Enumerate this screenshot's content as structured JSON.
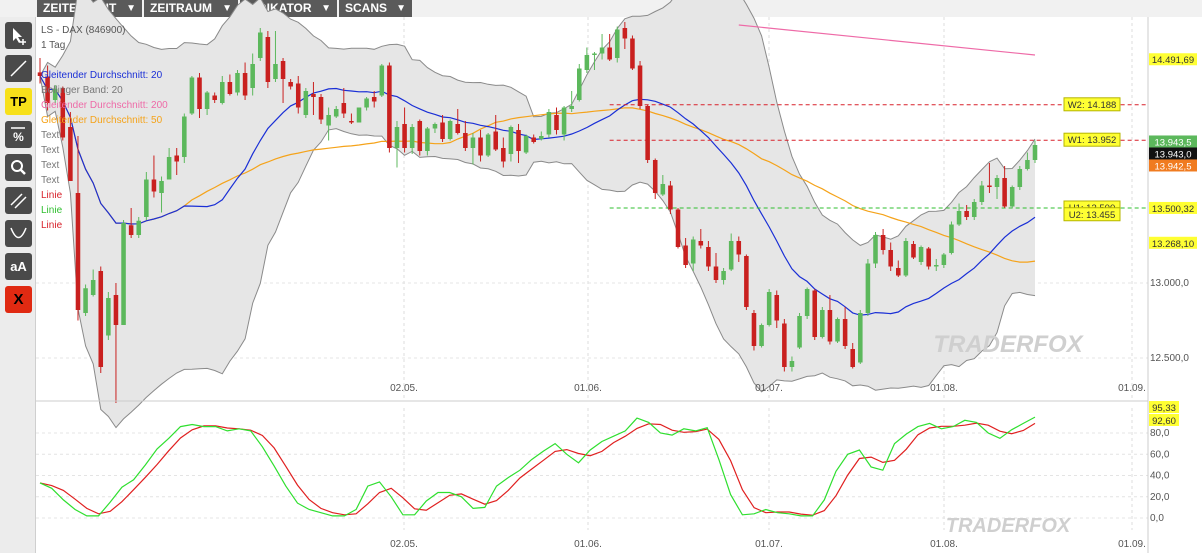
{
  "menu": {
    "items": [
      {
        "label": "ZEITEINHEIT",
        "arrow": "▼"
      },
      {
        "label": "ZEITRAUM",
        "arrow": "▼"
      },
      {
        "label": "INDIKATOR",
        "arrow": "▼"
      },
      {
        "label": "SCANS",
        "arrow": "▼"
      }
    ]
  },
  "toolbar": {
    "tools": [
      {
        "name": "cursor-tool",
        "label": ""
      },
      {
        "name": "line-tool",
        "label": ""
      },
      {
        "name": "tp-tool",
        "label": "TP"
      },
      {
        "name": "percent-tool",
        "label": "%"
      },
      {
        "name": "zoom-tool",
        "label": ""
      },
      {
        "name": "channel-tool",
        "label": ""
      },
      {
        "name": "curve-tool",
        "label": ""
      },
      {
        "name": "text-size-tool",
        "label": "aA"
      },
      {
        "name": "delete-tool",
        "label": "X"
      }
    ]
  },
  "chart_meta": {
    "instrument": "LS - DAX (846900)",
    "timeframe": "1 Tag",
    "legend": [
      {
        "label": "Gleitender Durchschnitt: 20",
        "color": "#1a2fd6"
      },
      {
        "label": "Bollinger Band: 20",
        "color": "#777777"
      },
      {
        "label": "Gleitender Durchschnitt: 200",
        "color": "#ee6aa7"
      },
      {
        "label": "Gleitender Durchschnitt: 50",
        "color": "#f5a31a"
      },
      {
        "label": "Text",
        "color": "#777777"
      },
      {
        "label": "Text",
        "color": "#777777"
      },
      {
        "label": "Text",
        "color": "#777777"
      },
      {
        "label": "Text",
        "color": "#777777"
      },
      {
        "label": "Linie",
        "color": "#d8202a"
      },
      {
        "label": "Linie",
        "color": "#2fbf2f"
      },
      {
        "label": "Linie",
        "color": "#d8202a"
      }
    ],
    "annotations": [
      {
        "label": "W2: 14.188",
        "value": 14188
      },
      {
        "label": "W1: 13.952",
        "value": 13952
      },
      {
        "label": "U1: 13.500",
        "value": 13500
      },
      {
        "label": "U2: 13.455",
        "value": 13455
      }
    ],
    "price_tags": [
      {
        "label": "14.491,69",
        "value": 14491.69,
        "bg": "#ffff33",
        "fg": "#333333"
      },
      {
        "label": "13.943,5",
        "value": 13943.5,
        "bg": "#5cb85c",
        "fg": "#ffffff"
      },
      {
        "label": "13.943,0",
        "value": 13943.0,
        "bg": "#111111",
        "fg": "#ffffff"
      },
      {
        "label": "13.942,5",
        "value": 13942.5,
        "bg": "#f07b20",
        "fg": "#ffffff"
      },
      {
        "label": "13.500,32",
        "value": 13500.32,
        "bg": "#ffff33",
        "fg": "#333333"
      },
      {
        "label": "13.268,10",
        "value": 13268.1,
        "bg": "#ffff33",
        "fg": "#333333"
      }
    ],
    "stoch_tags": [
      {
        "label": "95,33",
        "value": 95.33,
        "bg": "#ffff33"
      },
      {
        "label": "92,60",
        "value": 92.6,
        "bg": "#ffff33"
      }
    ],
    "watermark": "TRADERFOX",
    "colors": {
      "up": "#5cb85c",
      "down": "#c9201f",
      "band_fill": "#e6e6e6",
      "ma20": "#1a2fd6",
      "ma50": "#f5a31a",
      "ma200": "#ee6aa7",
      "stoch_k": "#2fdf2f",
      "stoch_d": "#e02020"
    }
  },
  "chart_data": [
    {
      "type": "candlestick",
      "title": "LS - DAX (846900)",
      "x_ticks": [
        "02.05.",
        "01.06.",
        "01.07.",
        "01.08.",
        "01.09."
      ],
      "y_ticks": [
        "12.500,0",
        "13.000,0"
      ],
      "ylim": [
        12300,
        14800
      ],
      "horizontal_lines": [
        {
          "value": 14188,
          "color": "#d8202a",
          "style": "dashed"
        },
        {
          "value": 13952,
          "color": "#d8202a",
          "style": "dashed"
        },
        {
          "value": 13500,
          "color": "#2fbf2f",
          "style": "dashed"
        }
      ],
      "series": [
        {
          "type": "moving_average"
        },
        {
          "type": "moving_average"
        },
        {
          "type": "moving_average"
        },
        {
          "type": "bollinger_band"
        }
      ],
      "candles": [
        [
          14404,
          14500,
          14330,
          14380
        ],
        [
          14377,
          14450,
          14150,
          14200
        ],
        [
          14220,
          14320,
          14200,
          14295
        ],
        [
          14300,
          14310,
          13950,
          13970
        ],
        [
          14040,
          14140,
          13700,
          13680
        ],
        [
          13600,
          13980,
          12750,
          12820
        ],
        [
          12800,
          12990,
          12780,
          12965
        ],
        [
          12920,
          13090,
          12910,
          13020
        ],
        [
          13080,
          13110,
          12400,
          12440
        ],
        [
          12650,
          12940,
          12620,
          12900
        ],
        [
          12920,
          13000,
          12200,
          12720
        ],
        [
          12720,
          13420,
          12720,
          13400
        ],
        [
          13385,
          13500,
          13300,
          13320
        ],
        [
          13320,
          13440,
          13300,
          13415
        ],
        [
          13440,
          13740,
          13420,
          13690
        ],
        [
          13690,
          13850,
          13570,
          13610
        ],
        [
          13600,
          13710,
          13470,
          13680
        ],
        [
          13690,
          13900,
          13690,
          13840
        ],
        [
          13850,
          13900,
          13720,
          13810
        ],
        [
          13840,
          14130,
          13800,
          14110
        ],
        [
          14130,
          14380,
          14120,
          14370
        ],
        [
          14370,
          14400,
          14100,
          14160
        ],
        [
          14160,
          14280,
          14120,
          14270
        ],
        [
          14250,
          14270,
          14200,
          14220
        ],
        [
          14200,
          14380,
          14190,
          14340
        ],
        [
          14340,
          14390,
          14250,
          14260
        ],
        [
          14270,
          14420,
          14250,
          14400
        ],
        [
          14400,
          14470,
          14220,
          14250
        ],
        [
          14300,
          14530,
          14250,
          14460
        ],
        [
          14500,
          14700,
          14480,
          14670
        ],
        [
          14640,
          14680,
          14300,
          14340
        ],
        [
          14360,
          14680,
          14340,
          14460
        ],
        [
          14480,
          14500,
          14200,
          14360
        ],
        [
          14340,
          14360,
          14290,
          14310
        ],
        [
          14330,
          14380,
          14130,
          14170
        ],
        [
          14120,
          14300,
          14100,
          14280
        ],
        [
          14260,
          14340,
          14120,
          14240
        ],
        [
          14240,
          14260,
          14060,
          14090
        ],
        [
          14050,
          14170,
          13950,
          14120
        ],
        [
          14110,
          14180,
          14100,
          14160
        ],
        [
          14200,
          14300,
          14100,
          14130
        ],
        [
          14080,
          14130,
          14060,
          14070
        ],
        [
          14070,
          14170,
          14070,
          14170
        ],
        [
          14170,
          14240,
          14150,
          14230
        ],
        [
          14240,
          14280,
          14170,
          14210
        ],
        [
          14250,
          14460,
          14240,
          14450
        ],
        [
          14450,
          14470,
          13870,
          13900
        ],
        [
          13900,
          14080,
          13770,
          14040
        ],
        [
          14060,
          14170,
          13870,
          13900
        ],
        [
          13900,
          14060,
          13860,
          14040
        ],
        [
          14080,
          14090,
          13850,
          13880
        ],
        [
          13880,
          14040,
          13850,
          14030
        ],
        [
          14030,
          14070,
          14000,
          14060
        ],
        [
          14070,
          14120,
          13940,
          13960
        ],
        [
          13960,
          14090,
          13950,
          14080
        ],
        [
          14060,
          14160,
          13990,
          14000
        ],
        [
          14000,
          14080,
          13880,
          13900
        ],
        [
          13900,
          14000,
          13790,
          13970
        ],
        [
          13970,
          14020,
          13810,
          13850
        ],
        [
          13850,
          14000,
          13840,
          13990
        ],
        [
          14010,
          14120,
          13880,
          13890
        ],
        [
          13900,
          13970,
          13770,
          13810
        ],
        [
          13860,
          14050,
          13810,
          14040
        ],
        [
          14020,
          14060,
          13800,
          13880
        ],
        [
          13870,
          13990,
          13860,
          13980
        ],
        [
          13970,
          13990,
          13930,
          13940
        ],
        [
          13960,
          14010,
          13950,
          13980
        ],
        [
          13990,
          14160,
          13970,
          14140
        ],
        [
          14120,
          14170,
          13990,
          14020
        ],
        [
          13990,
          14180,
          13950,
          14170
        ],
        [
          14160,
          14280,
          14140,
          14180
        ],
        [
          14220,
          14460,
          14210,
          14430
        ],
        [
          14420,
          14570,
          14400,
          14520
        ],
        [
          14520,
          14540,
          14420,
          14530
        ],
        [
          14530,
          14660,
          14490,
          14570
        ],
        [
          14570,
          14660,
          14480,
          14490
        ],
        [
          14500,
          14710,
          14470,
          14690
        ],
        [
          14700,
          14740,
          14560,
          14630
        ],
        [
          14630,
          14650,
          14420,
          14430
        ],
        [
          14450,
          14480,
          14160,
          14180
        ],
        [
          14180,
          14190,
          13800,
          13820
        ],
        [
          13820,
          13830,
          13560,
          13600
        ],
        [
          13590,
          13720,
          13580,
          13660
        ],
        [
          13650,
          13680,
          13460,
          13490
        ],
        [
          13490,
          13500,
          13230,
          13240
        ],
        [
          13250,
          13300,
          13100,
          13120
        ],
        [
          13130,
          13310,
          13080,
          13290
        ],
        [
          13280,
          13360,
          13230,
          13250
        ],
        [
          13240,
          13280,
          13080,
          13110
        ],
        [
          13110,
          13200,
          13000,
          13020
        ],
        [
          13020,
          13100,
          12990,
          13080
        ],
        [
          13090,
          13330,
          13080,
          13280
        ],
        [
          13280,
          13310,
          13140,
          13190
        ],
        [
          13180,
          13190,
          12820,
          12840
        ],
        [
          12800,
          12820,
          12550,
          12580
        ],
        [
          12580,
          12730,
          12570,
          12720
        ],
        [
          12720,
          12960,
          12710,
          12940
        ],
        [
          12920,
          12950,
          12700,
          12750
        ],
        [
          12730,
          12760,
          12410,
          12440
        ],
        [
          12440,
          12510,
          12410,
          12480
        ],
        [
          12570,
          12800,
          12560,
          12780
        ],
        [
          12780,
          12970,
          12760,
          12960
        ],
        [
          12950,
          12960,
          12620,
          12640
        ],
        [
          12640,
          12840,
          12630,
          12820
        ],
        [
          12820,
          12920,
          12590,
          12610
        ],
        [
          12610,
          12770,
          12600,
          12760
        ],
        [
          12760,
          12840,
          12560,
          12580
        ],
        [
          12560,
          12600,
          12430,
          12440
        ],
        [
          12470,
          12820,
          12460,
          12800
        ],
        [
          12800,
          13160,
          12780,
          13130
        ],
        [
          13130,
          13340,
          13100,
          13320
        ],
        [
          13320,
          13360,
          13190,
          13220
        ],
        [
          13220,
          13270,
          13080,
          13110
        ],
        [
          13100,
          13150,
          13040,
          13050
        ],
        [
          13050,
          13300,
          13040,
          13280
        ],
        [
          13260,
          13280,
          13160,
          13170
        ],
        [
          13140,
          13250,
          13120,
          13240
        ],
        [
          13230,
          13240,
          13090,
          13110
        ],
        [
          13110,
          13160,
          13080,
          13120
        ],
        [
          13120,
          13200,
          13100,
          13190
        ],
        [
          13200,
          13410,
          13190,
          13390
        ],
        [
          13390,
          13530,
          13380,
          13480
        ],
        [
          13480,
          13520,
          13420,
          13440
        ],
        [
          13440,
          13560,
          13420,
          13540
        ],
        [
          13540,
          13680,
          13520,
          13650
        ],
        [
          13650,
          13800,
          13600,
          13640
        ],
        [
          13640,
          13720,
          13560,
          13700
        ],
        [
          13700,
          13780,
          13500,
          13510
        ],
        [
          13510,
          13650,
          13500,
          13640
        ],
        [
          13640,
          13780,
          13620,
          13760
        ],
        [
          13760,
          13870,
          13750,
          13820
        ],
        [
          13820,
          13950,
          13800,
          13920
        ]
      ]
    },
    {
      "type": "line",
      "title": "",
      "x_ticks": [
        "02.05.",
        "01.06.",
        "01.07.",
        "01.08.",
        "01.09."
      ],
      "y_ticks": [
        "0,0",
        "20,0",
        "40,0",
        "60,0",
        "80,0"
      ],
      "ylim": [
        -8,
        100
      ],
      "series": [
        {
          "values": [
            33,
            28,
            17,
            8,
            2,
            2,
            15,
            29,
            36,
            50,
            65,
            75,
            86,
            88,
            86,
            86,
            82,
            84,
            82,
            67,
            49,
            30,
            14,
            8,
            5,
            2,
            2,
            8,
            30,
            34,
            20,
            3,
            3,
            16,
            24,
            24,
            20,
            9,
            10,
            30,
            38,
            45,
            55,
            63,
            70,
            60,
            52,
            64,
            72,
            77,
            82,
            94,
            90,
            80,
            78,
            84,
            82,
            85,
            55,
            22,
            3,
            4,
            8,
            5,
            4,
            2,
            2,
            17,
            44,
            60,
            64,
            48,
            45,
            70,
            79,
            86,
            89,
            84,
            86,
            92,
            90,
            80,
            75,
            83,
            89,
            95
          ]
        }
      ]
    }
  ]
}
